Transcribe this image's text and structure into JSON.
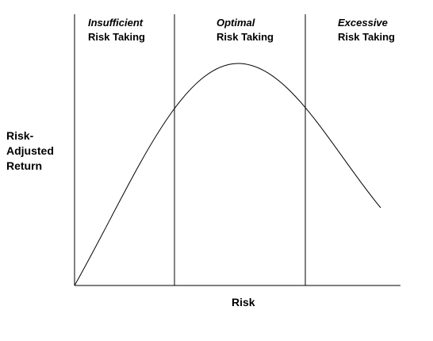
{
  "zones": [
    {
      "title": "Insufficient",
      "subtitle": "Risk Taking"
    },
    {
      "title": "Optimal",
      "subtitle": "Risk Taking"
    },
    {
      "title": "Excessive",
      "subtitle": "Risk Taking"
    }
  ],
  "axes": {
    "y_label_lines": [
      "Risk-",
      "Adjusted",
      "Return"
    ],
    "x_label": "Risk"
  },
  "colors": {
    "line": "#000000",
    "background": "#ffffff"
  }
}
